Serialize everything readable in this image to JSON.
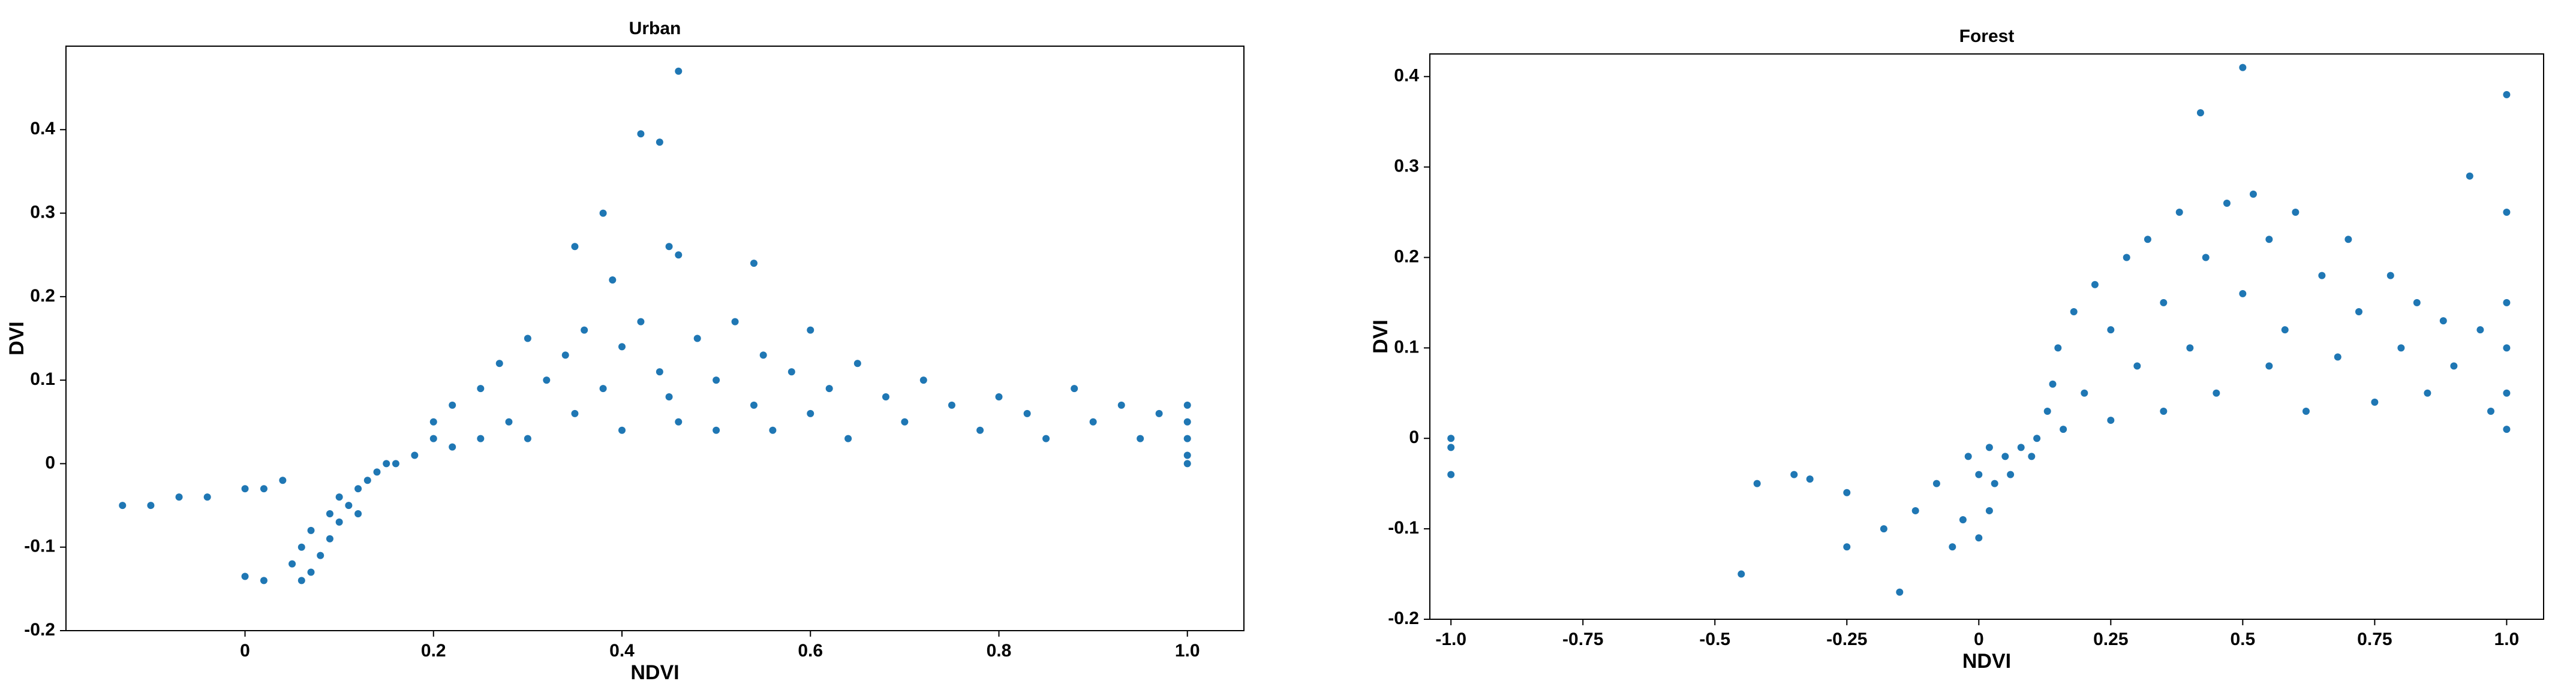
{
  "chart_data": [
    {
      "type": "scatter",
      "title": "Urban",
      "x_label": "NDVI",
      "y_label": "DVI",
      "color": "#1f77b4",
      "xlim": [
        -0.19,
        1.06
      ],
      "ylim": [
        -0.2,
        0.5
      ],
      "xticks": [
        0,
        0.2,
        0.4,
        0.6,
        0.8,
        {
          "value": 1,
          "label": "1.0"
        }
      ],
      "yticks": [
        -0.2,
        -0.1,
        0,
        0.1,
        0.2,
        0.3,
        0.4
      ],
      "x": [
        -0.13,
        -0.1,
        -0.07,
        -0.04,
        0,
        0.02,
        0.04,
        0,
        0.02,
        0.05,
        0.06,
        0.07,
        0.08,
        0.09,
        0.1,
        0.1,
        0.11,
        0.12,
        0.13,
        0.14,
        0.15,
        0.16,
        0.07,
        0.06,
        0.09,
        0.12,
        0.18,
        0.2,
        0.2,
        0.22,
        0.22,
        0.25,
        0.25,
        0.27,
        0.28,
        0.3,
        0.3,
        0.32,
        0.34,
        0.35,
        0.36,
        0.38,
        0.4,
        0.4,
        0.42,
        0.44,
        0.45,
        0.46,
        0.46,
        0.48,
        0.5,
        0.5,
        0.52,
        0.54,
        0.55,
        0.56,
        0.58,
        0.6,
        0.6,
        0.62,
        0.64,
        0.65,
        0.68,
        0.7,
        0.72,
        0.75,
        0.78,
        0.8,
        0.83,
        0.85,
        0.88,
        0.9,
        0.93,
        0.95,
        0.97,
        1,
        1,
        1,
        1,
        1,
        0.46,
        0.42,
        0.44,
        0.38,
        0.35,
        0.45,
        0.54,
        0.39
      ],
      "y": [
        -0.05,
        -0.05,
        -0.04,
        -0.04,
        -0.03,
        -0.03,
        -0.02,
        -0.135,
        -0.14,
        -0.12,
        -0.1,
        -0.08,
        -0.11,
        -0.06,
        -0.07,
        -0.04,
        -0.05,
        -0.03,
        -0.02,
        -0.01,
        0,
        0,
        -0.13,
        -0.14,
        -0.09,
        -0.06,
        0.01,
        0.03,
        0.05,
        0.02,
        0.07,
        0.03,
        0.09,
        0.12,
        0.05,
        0.15,
        0.03,
        0.1,
        0.13,
        0.06,
        0.16,
        0.09,
        0.14,
        0.04,
        0.17,
        0.11,
        0.08,
        0.25,
        0.05,
        0.15,
        0.1,
        0.04,
        0.17,
        0.07,
        0.13,
        0.04,
        0.11,
        0.16,
        0.06,
        0.09,
        0.03,
        0.12,
        0.08,
        0.05,
        0.1,
        0.07,
        0.04,
        0.08,
        0.06,
        0.03,
        0.09,
        0.05,
        0.07,
        0.03,
        0.06,
        0.07,
        0.05,
        0.03,
        0.01,
        0,
        0.47,
        0.395,
        0.385,
        0.3,
        0.26,
        0.26,
        0.24,
        0.22
      ]
    },
    {
      "type": "scatter",
      "title": "Forest",
      "x_label": "NDVI",
      "y_label": "DVI",
      "color": "#1f77b4",
      "xlim": [
        -1.04,
        1.07
      ],
      "ylim": [
        -0.2,
        0.425
      ],
      "xticks": [
        {
          "value": -1,
          "label": "-1.0"
        },
        -0.75,
        -0.5,
        -0.25,
        0,
        0.25,
        0.5,
        0.75,
        {
          "value": 1,
          "label": "1.0"
        }
      ],
      "yticks": [
        -0.2,
        -0.1,
        0,
        0.1,
        0.2,
        0.3,
        0.4
      ],
      "x": [
        -1,
        -1,
        -1,
        -0.45,
        -0.42,
        -0.35,
        -0.32,
        -0.25,
        -0.25,
        -0.18,
        -0.15,
        -0.12,
        -0.08,
        -0.05,
        -0.03,
        0,
        0.02,
        0,
        0.03,
        0.05,
        0.06,
        0.08,
        0.1,
        0.11,
        -0.02,
        0.02,
        0.13,
        0.14,
        0.15,
        0.16,
        0.18,
        0.2,
        0.22,
        0.25,
        0.25,
        0.28,
        0.3,
        0.32,
        0.35,
        0.35,
        0.38,
        0.4,
        0.42,
        0.43,
        0.45,
        0.47,
        0.5,
        0.5,
        0.52,
        0.55,
        0.55,
        0.58,
        0.6,
        0.62,
        0.65,
        0.68,
        0.7,
        0.72,
        0.75,
        0.78,
        0.8,
        0.83,
        0.85,
        0.88,
        0.9,
        0.93,
        0.95,
        0.97,
        1,
        1,
        1,
        1,
        1,
        1
      ],
      "y": [
        0,
        -0.01,
        -0.04,
        -0.15,
        -0.05,
        -0.04,
        -0.045,
        -0.06,
        -0.12,
        -0.1,
        -0.17,
        -0.08,
        -0.05,
        -0.12,
        -0.09,
        -0.11,
        -0.08,
        -0.04,
        -0.05,
        -0.02,
        -0.04,
        -0.01,
        -0.02,
        0,
        -0.02,
        -0.01,
        0.03,
        0.06,
        0.1,
        0.01,
        0.14,
        0.05,
        0.17,
        0.02,
        0.12,
        0.2,
        0.08,
        0.22,
        0.15,
        0.03,
        0.25,
        0.1,
        0.36,
        0.2,
        0.05,
        0.26,
        0.16,
        0.41,
        0.27,
        0.08,
        0.22,
        0.12,
        0.25,
        0.03,
        0.18,
        0.09,
        0.22,
        0.14,
        0.04,
        0.18,
        0.1,
        0.15,
        0.05,
        0.13,
        0.08,
        0.29,
        0.12,
        0.03,
        0.38,
        0.25,
        0.15,
        0.1,
        0.05,
        0.01
      ]
    }
  ]
}
